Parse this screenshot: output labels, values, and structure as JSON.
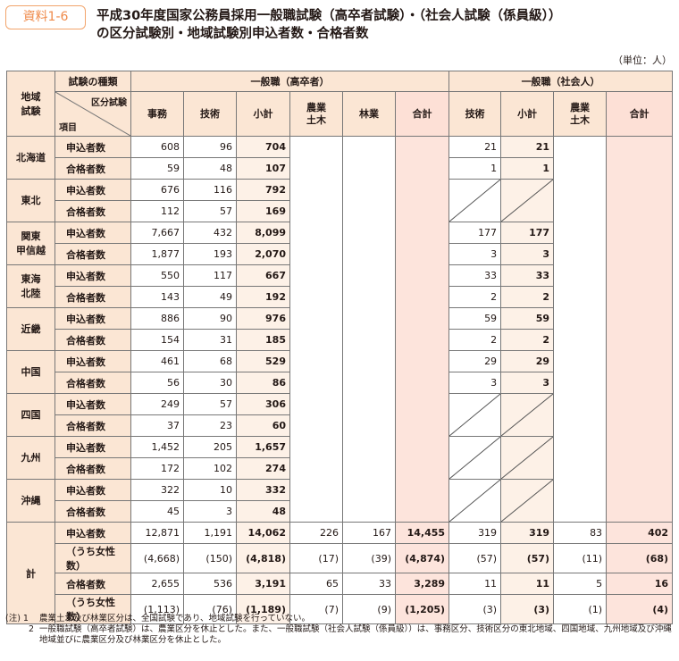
{
  "badge": "資料1-6",
  "title_line1": "平成30年度国家公務員採用一般職試験（高卒者試験）・（社会人試験（係員級））",
  "title_line2": "の区分試験別・地域試験別申込者数・合格者数",
  "unit": "（単位：人）",
  "headers": {
    "region": "地域\n試験",
    "exam_type": "試験の種類",
    "corner_top": "区分試験",
    "corner_bottom": "項目",
    "group_high": "一般職（高卒者）",
    "group_social": "一般職（社会人）",
    "cols_high": [
      "事務",
      "技術",
      "小計",
      "農業\n土木",
      "林業",
      "合計"
    ],
    "cols_social": [
      "技術",
      "小計",
      "農業\n土木",
      "合計"
    ]
  },
  "row_labels": {
    "apply": "申込者数",
    "pass": "合格者数"
  },
  "regions": [
    {
      "name": "北海道",
      "apply": [
        "608",
        "96",
        "704"
      ],
      "pass": [
        "59",
        "48",
        "107"
      ],
      "s_apply": [
        "21",
        "21"
      ],
      "s_pass": [
        "1",
        "1"
      ]
    },
    {
      "name": "東北",
      "apply": [
        "676",
        "116",
        "792"
      ],
      "pass": [
        "112",
        "57",
        "169"
      ],
      "s_apply": null,
      "s_pass": null
    },
    {
      "name": "関東\n甲信越",
      "apply": [
        "7,667",
        "432",
        "8,099"
      ],
      "pass": [
        "1,877",
        "193",
        "2,070"
      ],
      "s_apply": [
        "177",
        "177"
      ],
      "s_pass": [
        "3",
        "3"
      ]
    },
    {
      "name": "東海\n北陸",
      "apply": [
        "550",
        "117",
        "667"
      ],
      "pass": [
        "143",
        "49",
        "192"
      ],
      "s_apply": [
        "33",
        "33"
      ],
      "s_pass": [
        "2",
        "2"
      ]
    },
    {
      "name": "近畿",
      "apply": [
        "886",
        "90",
        "976"
      ],
      "pass": [
        "154",
        "31",
        "185"
      ],
      "s_apply": [
        "59",
        "59"
      ],
      "s_pass": [
        "2",
        "2"
      ]
    },
    {
      "name": "中国",
      "apply": [
        "461",
        "68",
        "529"
      ],
      "pass": [
        "56",
        "30",
        "86"
      ],
      "s_apply": [
        "29",
        "29"
      ],
      "s_pass": [
        "3",
        "3"
      ]
    },
    {
      "name": "四国",
      "apply": [
        "249",
        "57",
        "306"
      ],
      "pass": [
        "37",
        "23",
        "60"
      ],
      "s_apply": null,
      "s_pass": null
    },
    {
      "name": "九州",
      "apply": [
        "1,452",
        "205",
        "1,657"
      ],
      "pass": [
        "172",
        "102",
        "274"
      ],
      "s_apply": null,
      "s_pass": null
    },
    {
      "name": "沖縄",
      "apply": [
        "322",
        "10",
        "332"
      ],
      "pass": [
        "45",
        "3",
        "48"
      ],
      "s_apply": null,
      "s_pass": null
    }
  ],
  "totals": {
    "name": "計",
    "rows": [
      {
        "label": "申込者数",
        "values": [
          "12,871",
          "1,191",
          "14,062",
          "226",
          "167",
          "14,455",
          "319",
          "319",
          "83",
          "402"
        ]
      },
      {
        "label": "（うち女性数）",
        "values": [
          "(4,668)",
          "(150)",
          "(4,818)",
          "(17)",
          "(39)",
          "(4,874)",
          "(57)",
          "(57)",
          "(11)",
          "(68)"
        ]
      },
      {
        "label": "合格者数",
        "values": [
          "2,655",
          "536",
          "3,191",
          "65",
          "33",
          "3,289",
          "11",
          "11",
          "5",
          "16"
        ]
      },
      {
        "label": "（うち女性数）",
        "values": [
          "(1,113)",
          "(76)",
          "(1,189)",
          "(7)",
          "(9)",
          "(1,205)",
          "(3)",
          "(3)",
          "(1)",
          "(4)"
        ]
      }
    ]
  },
  "notes": [
    {
      "key": "(注) 1",
      "text": "農業土木及び林業区分は、全国試験であり、地域試験を行っていない。"
    },
    {
      "key": "2",
      "text": "一般職試験（高卒者試験）は、農業区分を休止とした。また、一般職試験（社会人試験（係員級））は、事務区分、技術区分の東北地域、四国地域、九州地域及び沖縄地域並びに農業区分及び林業区分を休止とした。"
    }
  ]
}
